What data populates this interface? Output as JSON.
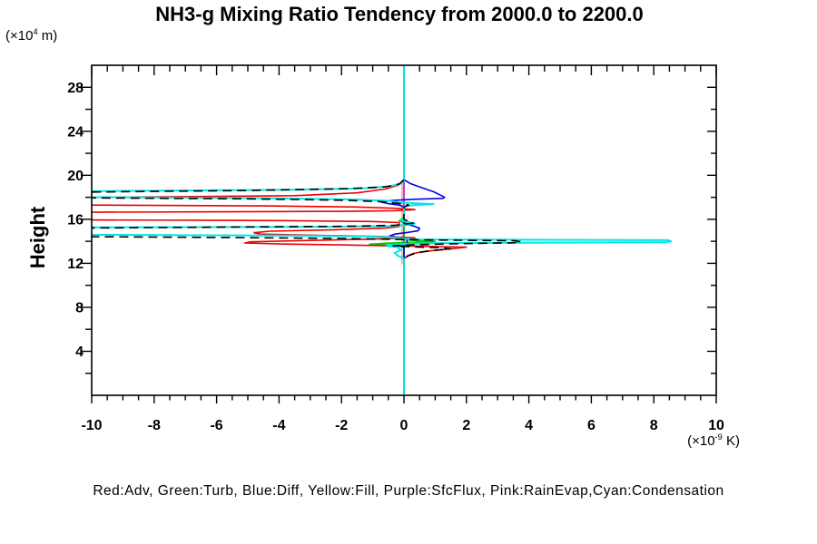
{
  "title": "NH3-g Mixing Ratio Tendency from 2000.0 to 2200.0",
  "footer": "Red:Adv, Green:Turb, Blue:Diff, Yellow:Fill, Purple:SfcFlux, Pink:RainEvap,Cyan:Condensation",
  "y_axis": {
    "label": "Height",
    "unit_prefix": "(×10",
    "unit_exp": "4",
    "unit_suffix": " m)",
    "range": [
      0,
      30
    ],
    "major_step": 4,
    "minor_step": 2,
    "tick_values": [
      28,
      24,
      20,
      16,
      12,
      8,
      4
    ],
    "tick_labels": [
      "28",
      "24",
      "20",
      "16",
      "12",
      "8",
      "4"
    ]
  },
  "x_axis": {
    "unit_prefix": "(×10",
    "unit_exp": "-9",
    "unit_suffix": " K)",
    "range": [
      -10,
      10
    ],
    "major_step": 2,
    "minor_step": 0.5,
    "tick_values": [
      -10,
      -8,
      -6,
      -4,
      -2,
      0,
      2,
      4,
      6,
      8,
      10
    ],
    "tick_labels": [
      "-10",
      "-8",
      "-6",
      "-4",
      "-2",
      "0",
      "2",
      "4",
      "6",
      "8",
      "10"
    ]
  },
  "chart_data": {
    "type": "line",
    "orientation": "vertical-profile (x = tendency value, y = height)",
    "zero_line": {
      "color": "#00e6e6",
      "x": 0
    },
    "series": [
      {
        "name": "yellow",
        "legend_label": "Yellow:Fill",
        "color": "#ffff00",
        "width": 1.5,
        "dash": null,
        "points": [
          [
            0,
            29.9
          ],
          [
            0,
            0.1
          ]
        ]
      },
      {
        "name": "purple",
        "legend_label": "Purple:SfcFlux",
        "color": "#aa00ff",
        "width": 1.5,
        "dash": null,
        "points": [
          [
            0,
            29.9
          ],
          [
            0,
            0.1
          ]
        ]
      },
      {
        "name": "pink",
        "legend_label": "Pink:RainEvap",
        "color": "#ff9f9f",
        "width": 1.6,
        "dash": null,
        "points": [
          [
            -0.06,
            19.3
          ],
          [
            -0.06,
            11.9
          ]
        ]
      },
      {
        "name": "green",
        "legend_label": "Green:Turb",
        "color": "#00cc00",
        "width": 1.8,
        "dash": null,
        "points": [
          [
            0,
            16.2
          ],
          [
            -0.15,
            15.85
          ],
          [
            0.1,
            15.62
          ],
          [
            0,
            15.45
          ],
          [
            0,
            14.4
          ],
          [
            -0.25,
            14.22
          ],
          [
            0.2,
            14.1
          ],
          [
            1.0,
            13.98
          ],
          [
            0.35,
            13.9
          ],
          [
            -0.55,
            13.82
          ],
          [
            -1.1,
            13.73
          ],
          [
            -0.45,
            13.63
          ],
          [
            0,
            13.52
          ],
          [
            0,
            0.1
          ]
        ]
      },
      {
        "name": "blue",
        "legend_label": "Blue:Diff",
        "color": "#0000ee",
        "width": 1.6,
        "dash": null,
        "points": [
          [
            0,
            29.95
          ],
          [
            0,
            19.6
          ],
          [
            0.2,
            19.25
          ],
          [
            0.55,
            18.9
          ],
          [
            0.95,
            18.5
          ],
          [
            1.2,
            18.15
          ],
          [
            1.3,
            18.0
          ],
          [
            1.25,
            17.9
          ],
          [
            0.4,
            17.83
          ],
          [
            -0.35,
            17.72
          ],
          [
            -0.75,
            17.58
          ],
          [
            -0.5,
            17.42
          ],
          [
            -0.15,
            17.28
          ],
          [
            0,
            17.12
          ],
          [
            0,
            15.6
          ],
          [
            0.3,
            15.4
          ],
          [
            0.5,
            15.18
          ],
          [
            0.45,
            14.95
          ],
          [
            0.1,
            14.8
          ],
          [
            -0.3,
            14.65
          ],
          [
            -0.45,
            14.5
          ],
          [
            -0.2,
            14.38
          ],
          [
            0.1,
            14.28
          ],
          [
            0.1,
            13.8
          ],
          [
            -0.15,
            13.62
          ],
          [
            0,
            13.45
          ],
          [
            0,
            0.1
          ]
        ]
      },
      {
        "name": "red",
        "legend_label": "Red:Adv",
        "color": "#ee0000",
        "width": 1.6,
        "dash": null,
        "points": [
          [
            0,
            19.45
          ],
          [
            -0.2,
            19.1
          ],
          [
            -0.6,
            18.75
          ],
          [
            -1.5,
            18.4
          ],
          [
            -3.5,
            18.15
          ],
          [
            -10.3,
            17.98
          ],
          [
            -10.3,
            17.3
          ],
          [
            -4.5,
            17.22
          ],
          [
            -1.5,
            17.12
          ],
          [
            -0.3,
            17.0
          ],
          [
            0.35,
            16.88
          ],
          [
            -0.3,
            16.78
          ],
          [
            -2,
            16.72
          ],
          [
            -5.5,
            16.68
          ],
          [
            -10.3,
            16.64
          ],
          [
            -10.3,
            15.95
          ],
          [
            -4,
            15.88
          ],
          [
            -1,
            15.8
          ],
          [
            -0.15,
            15.7
          ],
          [
            -0.15,
            15.35
          ],
          [
            -0.6,
            15.2
          ],
          [
            -2.2,
            15.05
          ],
          [
            -4.3,
            14.92
          ],
          [
            -4.8,
            14.78
          ],
          [
            -4.6,
            14.65
          ],
          [
            -2.8,
            14.55
          ],
          [
            -0.9,
            14.45
          ],
          [
            0.35,
            14.32
          ],
          [
            -1,
            14.2
          ],
          [
            -3,
            14.08
          ],
          [
            -4.9,
            13.95
          ],
          [
            -5.1,
            13.85
          ],
          [
            -3.8,
            13.75
          ],
          [
            -1.5,
            13.65
          ],
          [
            0.5,
            13.55
          ],
          [
            2.0,
            13.47
          ],
          [
            1.5,
            13.3
          ],
          [
            0.7,
            13.1
          ],
          [
            0.3,
            12.9
          ],
          [
            0.1,
            12.65
          ],
          [
            0,
            12.4
          ],
          [
            0,
            12.2
          ]
        ]
      },
      {
        "name": "cyan",
        "legend_label": "Cyan:Condensation",
        "color": "#00e6e6",
        "width": 2,
        "dash": null,
        "points": [
          [
            0,
            29.95
          ],
          [
            0,
            19.55
          ],
          [
            -0.1,
            19.25
          ],
          [
            -0.45,
            19.0
          ],
          [
            -1.3,
            18.82
          ],
          [
            -3.5,
            18.68
          ],
          [
            -10.3,
            18.55
          ],
          [
            -10.3,
            18.02
          ],
          [
            -4.5,
            17.92
          ],
          [
            -1.6,
            17.8
          ],
          [
            -0.5,
            17.68
          ],
          [
            -0.15,
            17.55
          ],
          [
            0.4,
            17.46
          ],
          [
            0.95,
            17.38
          ],
          [
            0.3,
            17.28
          ],
          [
            0,
            17.15
          ],
          [
            0,
            16.1
          ],
          [
            -0.1,
            15.9
          ],
          [
            0.35,
            15.62
          ],
          [
            0.05,
            15.47
          ],
          [
            -0.5,
            15.38
          ],
          [
            -2.5,
            15.32
          ],
          [
            -10.3,
            15.26
          ],
          [
            -10.3,
            14.6
          ],
          [
            -4,
            14.52
          ],
          [
            -1.2,
            14.45
          ],
          [
            -0.3,
            14.35
          ],
          [
            -0.05,
            14.25
          ],
          [
            0.4,
            14.17
          ],
          [
            8.45,
            14.1
          ],
          [
            8.55,
            14.0
          ],
          [
            8.4,
            13.92
          ],
          [
            1.2,
            13.84
          ],
          [
            0.1,
            13.77
          ],
          [
            -0.45,
            13.67
          ],
          [
            -0.55,
            13.57
          ],
          [
            -0.2,
            13.45
          ],
          [
            -0.1,
            13.2
          ],
          [
            -0.3,
            12.95
          ],
          [
            -0.2,
            12.7
          ],
          [
            0,
            12.4
          ],
          [
            0,
            0.1
          ]
        ]
      },
      {
        "name": "black-total",
        "legend_label": null,
        "color": "#000000",
        "width": 1.6,
        "dash": "10 6",
        "points": [
          [
            0,
            19.6
          ],
          [
            -0.15,
            19.2
          ],
          [
            -0.6,
            18.95
          ],
          [
            -1.8,
            18.78
          ],
          [
            -5,
            18.62
          ],
          [
            -10.3,
            18.47
          ],
          [
            -10.3,
            17.95
          ],
          [
            -5,
            17.86
          ],
          [
            -2,
            17.74
          ],
          [
            -0.7,
            17.6
          ],
          [
            -0.2,
            17.45
          ],
          [
            0.15,
            17.3
          ],
          [
            0,
            17.12
          ],
          [
            0,
            16.0
          ],
          [
            0.3,
            15.65
          ],
          [
            -0.3,
            15.45
          ],
          [
            -1.8,
            15.36
          ],
          [
            -10.3,
            15.21
          ],
          [
            -10.3,
            14.42
          ],
          [
            -5.5,
            14.34
          ],
          [
            -2,
            14.26
          ],
          [
            -0.5,
            14.18
          ],
          [
            1.2,
            14.11
          ],
          [
            3.55,
            14.05
          ],
          [
            3.75,
            13.95
          ],
          [
            3.5,
            13.86
          ],
          [
            1.5,
            13.77
          ],
          [
            0.3,
            13.68
          ],
          [
            -0.35,
            13.58
          ],
          [
            0.3,
            13.49
          ],
          [
            1.1,
            13.42
          ],
          [
            1.5,
            13.33
          ],
          [
            0.9,
            13.15
          ],
          [
            0.4,
            12.95
          ],
          [
            0.15,
            12.7
          ],
          [
            0,
            12.45
          ]
        ]
      }
    ]
  },
  "colors": {
    "background": "#ffffff",
    "axis": "#000000",
    "zero_line": "#00e6e6",
    "rain_evap_line": "#ff9f9f"
  }
}
